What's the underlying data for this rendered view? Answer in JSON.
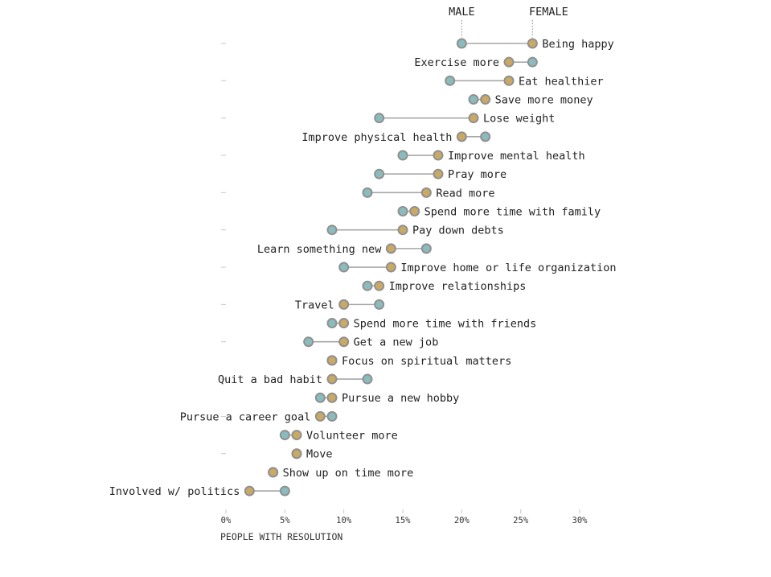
{
  "chart_data": {
    "type": "dot-plot",
    "xlabel": "PEOPLE WITH RESOLUTION",
    "xlim": [
      0,
      30
    ],
    "xticks": [
      0,
      5,
      10,
      15,
      20,
      25,
      30
    ],
    "xtick_labels": [
      "0%",
      "5%",
      "10%",
      "15%",
      "20%",
      "25%",
      "30%"
    ],
    "colors": {
      "male": "#8bbcbd",
      "female": "#c9a963"
    },
    "series": [
      {
        "name": "MALE",
        "key": "male"
      },
      {
        "name": "FEMALE",
        "key": "female"
      }
    ],
    "categories": [
      "Being happy",
      "Exercise more",
      "Eat healthier",
      "Save more money",
      "Lose weight",
      "Improve physical health",
      "Improve mental health",
      "Pray more",
      "Read more",
      "Spend more time with family",
      "Pay down debts",
      "Learn something new",
      "Improve home or life organization",
      "Improve relationships",
      "Travel",
      "Spend more time with friends",
      "Get a new job",
      "Focus on spiritual matters",
      "Quit a bad habit",
      "Pursue a new hobby",
      "Pursue a career goal",
      "Volunteer more",
      "Move",
      "Show up on time more",
      "Involved w/ politics"
    ],
    "male": [
      20,
      26,
      19,
      21,
      13,
      22,
      15,
      13,
      12,
      15,
      9,
      17,
      10,
      12,
      13,
      9,
      7,
      9,
      12,
      8,
      9,
      5,
      6,
      4,
      5
    ],
    "female": [
      26,
      24,
      24,
      22,
      21,
      20,
      18,
      18,
      17,
      16,
      15,
      14,
      14,
      13,
      10,
      10,
      10,
      9,
      9,
      9,
      8,
      6,
      6,
      4,
      2
    ]
  }
}
